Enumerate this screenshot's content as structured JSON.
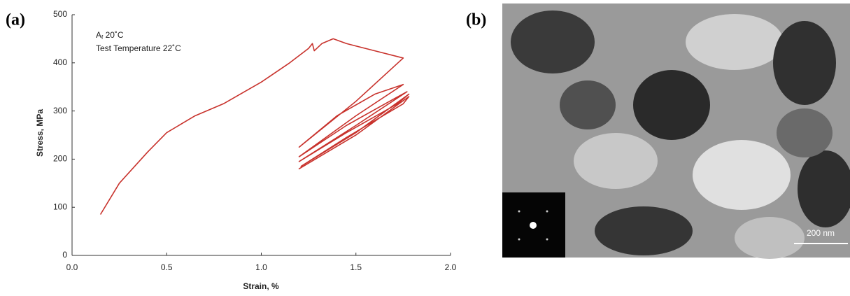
{
  "panel_labels": [
    "(a)",
    "(b)"
  ],
  "chart_data": {
    "type": "line",
    "annotation_lines": [
      {
        "main": "A",
        "subscript": "f",
        "rest": " 20˚C"
      },
      "Test Temperature 22˚C"
    ],
    "xlabel": "Strain, %",
    "ylabel": "Stress, MPa",
    "x": [
      0.15,
      0.25,
      0.4,
      0.5,
      0.65,
      0.8,
      1.0,
      1.15,
      1.25,
      1.27,
      1.28,
      1.32,
      1.38,
      1.45,
      1.6,
      1.75,
      1.5,
      1.2,
      1.4,
      1.6,
      1.75,
      1.5,
      1.2,
      1.45,
      1.7,
      1.77,
      1.5,
      1.2,
      1.45,
      1.72,
      1.78,
      1.5,
      1.21,
      1.45,
      1.75,
      1.78,
      1.5,
      1.2,
      1.5,
      1.78
    ],
    "series": [
      {
        "color": "#c8322c",
        "values": [
          85,
          150,
          215,
          255,
          290,
          315,
          360,
          400,
          430,
          440,
          425,
          440,
          450,
          440,
          425,
          410,
          320,
          225,
          290,
          335,
          355,
          290,
          205,
          270,
          325,
          340,
          270,
          195,
          255,
          315,
          335,
          255,
          185,
          245,
          315,
          330,
          250,
          180,
          250,
          330
        ]
      }
    ],
    "xlim": [
      0,
      2
    ],
    "xticks": [
      {
        "value": 0,
        "label": "0.0"
      },
      0.5,
      {
        "value": 1,
        "label": "1.0"
      },
      1.5,
      {
        "value": 2,
        "label": "2.0"
      }
    ],
    "ylim": [
      0,
      500
    ],
    "yticks": [
      0,
      100,
      200,
      300,
      400,
      500
    ],
    "grid": false
  },
  "micrograph": {
    "scale_bar": "200 nm"
  }
}
